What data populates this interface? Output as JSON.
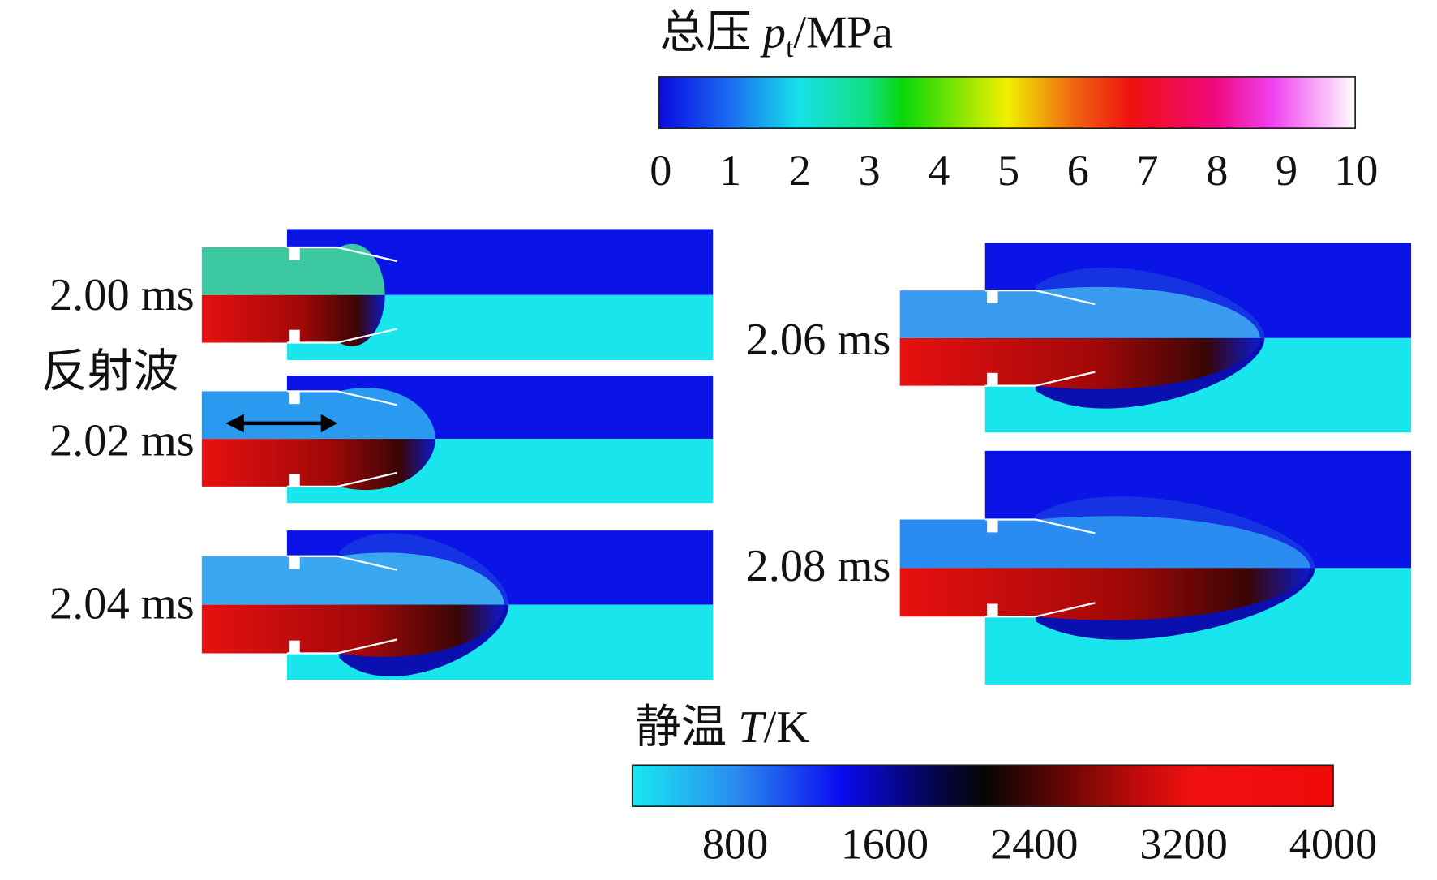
{
  "colorbars": [
    {
      "name": "总压",
      "symbol": "p",
      "subscript": "t",
      "unit": "/MPa",
      "range": [
        0,
        10
      ],
      "ticks": [
        0,
        1,
        2,
        3,
        4,
        5,
        6,
        7,
        8,
        9,
        10
      ]
    },
    {
      "name": "静温",
      "symbol": "T",
      "unit": "/K",
      "range": [
        250,
        4000
      ],
      "ticks": [
        800,
        1600,
        2400,
        3200,
        4000
      ]
    }
  ],
  "panels": [
    {
      "time": "2.00 ms"
    },
    {
      "time": "2.02 ms"
    },
    {
      "time": "2.04 ms"
    },
    {
      "time": "2.06 ms"
    },
    {
      "time": "2.08 ms"
    }
  ],
  "annotation": "反射波"
}
